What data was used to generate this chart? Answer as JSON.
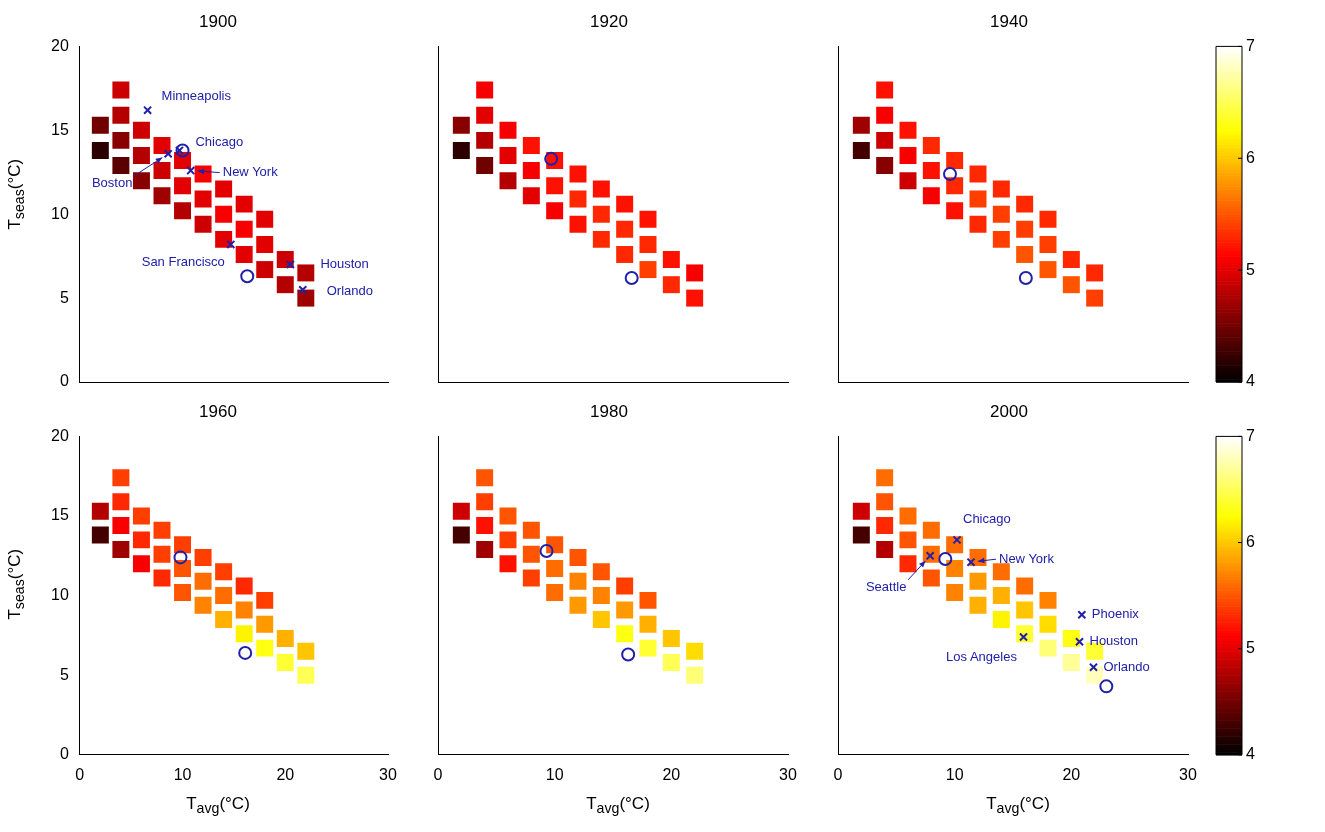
{
  "chart_data": [
    {
      "type": "scatter",
      "title": "1900",
      "xlim": [
        0,
        30
      ],
      "xticks": [
        0,
        10,
        20,
        30
      ],
      "ylim": [
        0,
        20
      ],
      "yticks": [
        0,
        5,
        10,
        15,
        20
      ],
      "ylabel": "T$_{seas}$(°C)",
      "tick_labels": "y",
      "grid": false,
      "legend": false,
      "series": [
        {
          "marker": "square",
          "x": [
            2,
            2,
            4,
            4,
            4,
            4,
            6,
            6,
            6,
            8,
            8,
            8,
            10,
            10,
            10,
            12,
            12,
            12,
            14,
            14,
            14,
            16,
            16,
            16,
            18,
            18,
            18,
            20,
            20,
            22,
            22
          ],
          "values": [
            13.8,
            15.3,
            12.9,
            14.4,
            15.9,
            17.4,
            12,
            13.5,
            15,
            11.1,
            12.6,
            14.1,
            10.2,
            11.7,
            13.2,
            9.4,
            10.9,
            12.4,
            8.5,
            10,
            11.5,
            7.6,
            9.1,
            10.6,
            6.7,
            8.2,
            9.7,
            5.8,
            7.3,
            5,
            6.5
          ],
          "colors": [
            "#2d0000",
            "#710000",
            "#5b0000",
            "#880000",
            "#b50000",
            "#cc0000",
            "#880000",
            "#b50000",
            "#cc0000",
            "#9f0000",
            "#cc0000",
            "#e30000",
            "#b50000",
            "#e30000",
            "#e30000",
            "#cc0000",
            "#e30000",
            "#f90000",
            "#e30000",
            "#f90000",
            "#e30000",
            "#e30000",
            "#f90000",
            "#e30000",
            "#cc0000",
            "#e30000",
            "#e30000",
            "#b50000",
            "#cc0000",
            "#9f0000",
            "#b50000"
          ]
        },
        {
          "marker": "cross",
          "color": "#2020a8",
          "x": [
            6.6,
            9.7,
            8.6,
            10.8,
            14.7,
            20.5,
            21.7
          ],
          "values": [
            16.2,
            13.8,
            13.6,
            12.6,
            8.2,
            7.0,
            5.5
          ]
        },
        {
          "marker": "circle",
          "color": "#2020a8",
          "x": [
            10.0,
            16.3
          ],
          "values": [
            13.8,
            6.3
          ]
        }
      ],
      "annotations": [
        {
          "text": "Minneapolis",
          "x": 6.6,
          "y": 16.2
        },
        {
          "text": "Chicago",
          "x": 9.7,
          "y": 13.8
        },
        {
          "text": "Boston",
          "x": 8.6,
          "y": 13.6
        },
        {
          "text": "New York",
          "x": 10.8,
          "y": 12.6
        },
        {
          "text": "San Francisco",
          "x": 14.7,
          "y": 8.2
        },
        {
          "text": "Houston",
          "x": 20.5,
          "y": 7.0
        },
        {
          "text": "Orlando",
          "x": 21.7,
          "y": 5.5
        }
      ]
    },
    {
      "type": "scatter",
      "title": "1920",
      "xlim": [
        0,
        30
      ],
      "xticks": [
        0,
        10,
        20,
        30
      ],
      "ylim": [
        0,
        20
      ],
      "yticks": [
        0,
        5,
        10,
        15,
        20
      ],
      "tick_labels": false,
      "grid": false,
      "legend": false,
      "series": [
        {
          "marker": "square",
          "x": [
            2,
            2,
            4,
            4,
            4,
            4,
            6,
            6,
            6,
            8,
            8,
            8,
            10,
            10,
            10,
            12,
            12,
            12,
            14,
            14,
            14,
            16,
            16,
            16,
            18,
            18,
            18,
            20,
            20,
            22,
            22
          ],
          "values": [
            13.8,
            15.3,
            12.9,
            14.4,
            15.9,
            17.4,
            12,
            13.5,
            15,
            11.1,
            12.6,
            14.1,
            10.2,
            11.7,
            13.2,
            9.4,
            10.9,
            12.4,
            8.5,
            10,
            11.5,
            7.6,
            9.1,
            10.6,
            6.7,
            8.2,
            9.7,
            5.8,
            7.3,
            5,
            6.5
          ],
          "colors": [
            "#2d0000",
            "#880000",
            "#710000",
            "#b50000",
            "#e30000",
            "#f90000",
            "#b50000",
            "#e30000",
            "#f90000",
            "#e30000",
            "#f90000",
            "#ff1100",
            "#f90000",
            "#ff1100",
            "#ff1100",
            "#ff1100",
            "#ff2800",
            "#ff1100",
            "#ff2800",
            "#ff2800",
            "#ff1100",
            "#ff2800",
            "#ff2800",
            "#ff1100",
            "#ff3e00",
            "#ff2800",
            "#ff1100",
            "#ff2800",
            "#ff1100",
            "#ff1100",
            "#f90000"
          ]
        },
        {
          "marker": "circle",
          "color": "#2020a8",
          "x": [
            9.7,
            16.6
          ],
          "values": [
            13.3,
            6.2
          ]
        }
      ]
    },
    {
      "type": "scatter",
      "title": "1940",
      "xlim": [
        0,
        30
      ],
      "xticks": [
        0,
        10,
        20,
        30
      ],
      "ylim": [
        0,
        20
      ],
      "yticks": [
        0,
        5,
        10,
        15,
        20
      ],
      "tick_labels": false,
      "grid": false,
      "legend": false,
      "clim": [
        4,
        7
      ],
      "cticks": [
        4,
        5,
        6,
        7
      ],
      "series": [
        {
          "marker": "square",
          "x": [
            2,
            2,
            4,
            4,
            4,
            4,
            6,
            6,
            6,
            8,
            8,
            8,
            10,
            10,
            10,
            12,
            12,
            12,
            14,
            14,
            14,
            16,
            16,
            16,
            18,
            18,
            18,
            20,
            20,
            22,
            22
          ],
          "values": [
            13.8,
            15.3,
            12.9,
            14.4,
            15.9,
            17.4,
            12,
            13.5,
            15,
            11.1,
            12.6,
            14.1,
            10.2,
            11.7,
            13.2,
            9.4,
            10.9,
            12.4,
            8.5,
            10,
            11.5,
            7.6,
            9.1,
            10.6,
            6.7,
            8.2,
            9.7,
            5.8,
            7.3,
            5,
            6.5
          ],
          "colors": [
            "#440000",
            "#9f0000",
            "#880000",
            "#cc0000",
            "#f90000",
            "#ff1100",
            "#cc0000",
            "#f90000",
            "#ff1100",
            "#f90000",
            "#ff1100",
            "#ff2800",
            "#ff1100",
            "#ff2800",
            "#ff2800",
            "#ff2800",
            "#ff3e00",
            "#ff2800",
            "#ff3e00",
            "#ff3e00",
            "#ff2800",
            "#ff5500",
            "#ff3e00",
            "#ff2800",
            "#ff5500",
            "#ff3e00",
            "#ff2800",
            "#ff5500",
            "#ff2800",
            "#ff3e00",
            "#ff2800"
          ]
        },
        {
          "marker": "circle",
          "color": "#2020a8",
          "x": [
            9.6,
            16.1
          ],
          "values": [
            12.4,
            6.2
          ]
        }
      ]
    },
    {
      "type": "scatter",
      "title": "1960",
      "xlim": [
        0,
        30
      ],
      "xticks": [
        0,
        10,
        20,
        30
      ],
      "ylim": [
        0,
        20
      ],
      "yticks": [
        0,
        5,
        10,
        15,
        20
      ],
      "xlabel": "T$_{avg}$(°C)",
      "ylabel": "T$_{seas}$(°C)",
      "grid": false,
      "legend": false,
      "series": [
        {
          "marker": "square",
          "x": [
            2,
            2,
            4,
            4,
            4,
            4,
            6,
            6,
            6,
            8,
            8,
            8,
            10,
            10,
            10,
            12,
            12,
            12,
            14,
            14,
            14,
            16,
            16,
            16,
            18,
            18,
            18,
            20,
            20,
            22,
            22
          ],
          "values": [
            13.8,
            15.3,
            12.9,
            14.4,
            15.9,
            17.4,
            12,
            13.5,
            15,
            11.1,
            12.6,
            14.1,
            10.2,
            11.7,
            13.2,
            9.4,
            10.9,
            12.4,
            8.5,
            10,
            11.5,
            7.6,
            9.1,
            10.6,
            6.7,
            8.2,
            9.7,
            5.8,
            7.3,
            5,
            6.5
          ],
          "colors": [
            "#440000",
            "#b50000",
            "#9f0000",
            "#f90000",
            "#ff2800",
            "#ff3e00",
            "#f90000",
            "#ff2800",
            "#ff3e00",
            "#ff2800",
            "#ff3e00",
            "#ff3e00",
            "#ff5500",
            "#ff5500",
            "#ff3e00",
            "#ff8200",
            "#ff6c00",
            "#ff3e00",
            "#ffb000",
            "#ff6c00",
            "#ff3e00",
            "#fff400",
            "#ff8200",
            "#ff2800",
            "#ffff11",
            "#ff9900",
            "#ff3e00",
            "#ffff33",
            "#ffb000",
            "#ffff55",
            "#ffc600"
          ]
        },
        {
          "marker": "circle",
          "color": "#2020a8",
          "x": [
            9.8,
            16.1
          ],
          "values": [
            12.4,
            6.4
          ]
        }
      ]
    },
    {
      "type": "scatter",
      "title": "1980",
      "xlim": [
        0,
        30
      ],
      "xticks": [
        0,
        10,
        20,
        30
      ],
      "ylim": [
        0,
        20
      ],
      "yticks": [
        0,
        5,
        10,
        15,
        20
      ],
      "xlabel": "T$_{avg}$(°C)",
      "tick_labels": "x",
      "grid": false,
      "legend": false,
      "series": [
        {
          "marker": "square",
          "x": [
            2,
            2,
            4,
            4,
            4,
            4,
            6,
            6,
            6,
            8,
            8,
            8,
            10,
            10,
            10,
            12,
            12,
            12,
            14,
            14,
            14,
            16,
            16,
            16,
            18,
            18,
            18,
            20,
            20,
            22,
            22
          ],
          "values": [
            13.8,
            15.3,
            12.9,
            14.4,
            15.9,
            17.4,
            12,
            13.5,
            15,
            11.1,
            12.6,
            14.1,
            10.2,
            11.7,
            13.2,
            9.4,
            10.9,
            12.4,
            8.5,
            10,
            11.5,
            7.6,
            9.1,
            10.6,
            6.7,
            8.2,
            9.7,
            5.8,
            7.3,
            5,
            6.5
          ],
          "colors": [
            "#440000",
            "#cc0000",
            "#9f0000",
            "#ff1100",
            "#ff3e00",
            "#ff5500",
            "#ff1100",
            "#ff3e00",
            "#ff5500",
            "#ff3e00",
            "#ff5500",
            "#ff5500",
            "#ff6c00",
            "#ff6c00",
            "#ff5500",
            "#ff9900",
            "#ff8200",
            "#ff5500",
            "#ffc600",
            "#ff8200",
            "#ff5500",
            "#ffff11",
            "#ff9900",
            "#ff3e00",
            "#ffff33",
            "#ffb000",
            "#ff5500",
            "#ffff55",
            "#ffc600",
            "#ffff77",
            "#ffdd00"
          ]
        },
        {
          "marker": "circle",
          "color": "#2020a8",
          "x": [
            9.3,
            16.3
          ],
          "values": [
            12.8,
            6.3
          ]
        }
      ]
    },
    {
      "type": "scatter",
      "title": "2000",
      "xlim": [
        0,
        30
      ],
      "xticks": [
        0,
        10,
        20,
        30
      ],
      "ylim": [
        0,
        20
      ],
      "yticks": [
        0,
        5,
        10,
        15,
        20
      ],
      "xlabel": "T$_{avg}$(°C)",
      "tick_labels": "x",
      "grid": false,
      "legend": false,
      "clim": [
        4,
        7
      ],
      "cticks": [
        4,
        5,
        6,
        7
      ],
      "series": [
        {
          "marker": "square",
          "x": [
            2,
            2,
            4,
            4,
            4,
            4,
            6,
            6,
            6,
            8,
            8,
            8,
            10,
            10,
            10,
            12,
            12,
            12,
            14,
            14,
            14,
            16,
            16,
            16,
            18,
            18,
            18,
            20,
            20,
            22,
            22
          ],
          "values": [
            13.8,
            15.3,
            12.9,
            14.4,
            15.9,
            17.4,
            12,
            13.5,
            15,
            11.1,
            12.6,
            14.1,
            10.2,
            11.7,
            13.2,
            9.4,
            10.9,
            12.4,
            8.5,
            10,
            11.5,
            7.6,
            9.1,
            10.6,
            6.7,
            8.2,
            9.7,
            5.8,
            7.3,
            5,
            6.5
          ],
          "colors": [
            "#440000",
            "#cc0000",
            "#b50000",
            "#ff2800",
            "#ff5500",
            "#ff6c00",
            "#ff2800",
            "#ff5500",
            "#ff6c00",
            "#ff5500",
            "#ff6c00",
            "#ff6c00",
            "#ff8200",
            "#ff8200",
            "#ff6c00",
            "#ffb000",
            "#ff9900",
            "#ff6c00",
            "#fff400",
            "#ffb000",
            "#ff6c00",
            "#ffff33",
            "#ffc600",
            "#ff6c00",
            "#ffff77",
            "#ffdd00",
            "#ff8200",
            "#ffff99",
            "#ffff11",
            "#ffffbb",
            "#ffff33"
          ]
        },
        {
          "marker": "cross",
          "color": "#2020a8",
          "x": [
            10.2,
            7.9,
            11.4,
            20.9,
            20.7,
            21.9,
            15.9
          ],
          "values": [
            13.5,
            12.5,
            12.1,
            8.8,
            7.1,
            5.5,
            7.4
          ]
        },
        {
          "marker": "circle",
          "color": "#2020a8",
          "x": [
            9.2,
            23.0
          ],
          "values": [
            12.3,
            4.3
          ]
        }
      ],
      "annotations": [
        {
          "text": "Chicago",
          "x": 10.2,
          "y": 13.5
        },
        {
          "text": "Seattle",
          "x": 7.9,
          "y": 12.5
        },
        {
          "text": "New York",
          "x": 11.4,
          "y": 12.1
        },
        {
          "text": "Phoenix",
          "x": 20.9,
          "y": 8.8
        },
        {
          "text": "Houston",
          "x": 20.7,
          "y": 7.1
        },
        {
          "text": "Orlando",
          "x": 21.9,
          "y": 5.5
        },
        {
          "text": "Los Angeles",
          "x": 15.9,
          "y": 7.4
        }
      ]
    }
  ]
}
